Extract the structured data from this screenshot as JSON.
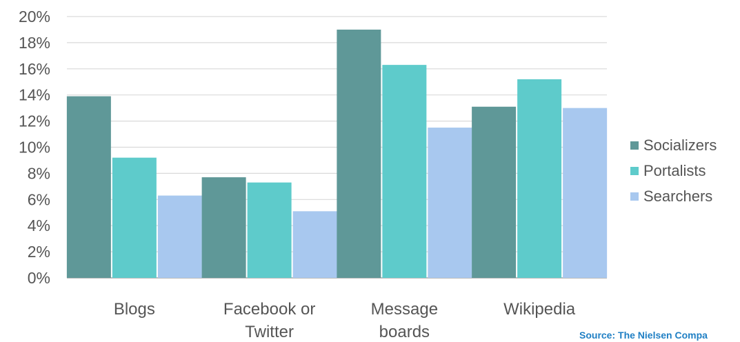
{
  "chart_data": {
    "type": "bar",
    "categories": [
      "Blogs",
      "Facebook or Twitter",
      "Message boards",
      "Wikipedia"
    ],
    "category_lines": [
      [
        "Blogs"
      ],
      [
        "Facebook or",
        "Twitter"
      ],
      [
        "Message",
        "boards"
      ],
      [
        "Wikipedia"
      ]
    ],
    "series": [
      {
        "name": "Socializers",
        "values": [
          13.9,
          7.7,
          19.0,
          13.1
        ],
        "color": "#5f9898"
      },
      {
        "name": "Portalists",
        "values": [
          9.2,
          7.3,
          16.3,
          15.2
        ],
        "color": "#5ecbcb"
      },
      {
        "name": "Searchers",
        "values": [
          6.3,
          5.1,
          11.5,
          13.0
        ],
        "color": "#a8c8ef"
      }
    ],
    "y_ticks": [
      "0%",
      "2%",
      "4%",
      "6%",
      "8%",
      "10%",
      "12%",
      "14%",
      "16%",
      "18%",
      "20%"
    ],
    "ylim": [
      0,
      20
    ],
    "grid": true,
    "legend_position": "right",
    "title": "",
    "xlabel": "",
    "ylabel": ""
  },
  "source": "Source: The Nielsen Compa"
}
